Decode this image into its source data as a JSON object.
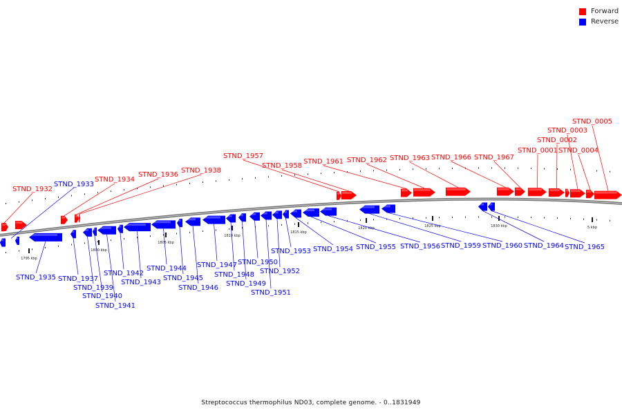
{
  "legend": {
    "forward_label": "Forward",
    "reverse_label": "Reverse",
    "forward_color": "#ff0000",
    "reverse_color": "#0000ff"
  },
  "caption": "Streptococcus thermophilus ND03, complete genome. - 0..1831949",
  "scale_ticks": [
    "1795 kbp",
    "1800 kbp",
    "1805 kbp",
    "1810 kbp",
    "1815 kbp",
    "1820 kbp",
    "1825 kbp",
    "1830 kbp",
    "5 kbp"
  ],
  "forward_genes": [
    "STND_1932",
    "STND_1934",
    "STND_1936",
    "STND_1938",
    "STND_1957",
    "STND_1958",
    "STND_1961",
    "STND_1962",
    "STND_1963",
    "STND_1966",
    "STND_1967",
    "STND_0001",
    "STND_0002",
    "STND_0003",
    "STND_0004",
    "STND_0005"
  ],
  "reverse_genes": [
    "STND_1933",
    "STND_1935",
    "STND_1937",
    "STND_1939",
    "STND_1940",
    "STND_1941",
    "STND_1942",
    "STND_1943",
    "STND_1944",
    "STND_1945",
    "STND_1946",
    "STND_1947",
    "STND_1948",
    "STND_1949",
    "STND_1950",
    "STND_1951",
    "STND_1952",
    "STND_1953",
    "STND_1954",
    "STND_1955",
    "STND_1956",
    "STND_1959",
    "STND_1960",
    "STND_1964",
    "STND_1965"
  ]
}
